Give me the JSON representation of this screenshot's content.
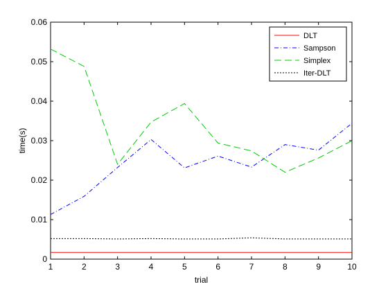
{
  "chart_data": {
    "type": "line",
    "title": "",
    "xlabel": "trial",
    "ylabel": "time(s)",
    "x": [
      1,
      2,
      3,
      4,
      5,
      6,
      7,
      8,
      9,
      10
    ],
    "xlim": [
      1,
      10
    ],
    "ylim": [
      0,
      0.06
    ],
    "xticks": [
      "1",
      "2",
      "3",
      "4",
      "5",
      "6",
      "7",
      "8",
      "9",
      "10"
    ],
    "yticks": [
      "0",
      "0.01",
      "0.02",
      "0.03",
      "0.04",
      "0.05",
      "0.06"
    ],
    "grid": false,
    "legend_position": "top-right",
    "series": [
      {
        "name": "DLT",
        "color": "#ff0000",
        "style": "solid",
        "values": [
          0.0017,
          0.0017,
          0.0017,
          0.0017,
          0.0017,
          0.0017,
          0.0017,
          0.0017,
          0.0017,
          0.0017
        ]
      },
      {
        "name": "Sampson",
        "color": "#0000ff",
        "style": "dashdot",
        "values": [
          0.0113,
          0.0159,
          0.0232,
          0.0303,
          0.0231,
          0.0261,
          0.0233,
          0.029,
          0.0276,
          0.0344
        ]
      },
      {
        "name": "Simplex",
        "color": "#00cc00",
        "style": "dashed",
        "values": [
          0.0532,
          0.0488,
          0.024,
          0.0347,
          0.0394,
          0.0294,
          0.0274,
          0.022,
          0.0256,
          0.03
        ]
      },
      {
        "name": "Iter-DLT",
        "color": "#000000",
        "style": "dotted",
        "values": [
          0.0052,
          0.0052,
          0.0051,
          0.0052,
          0.0051,
          0.0051,
          0.0054,
          0.0051,
          0.0051,
          0.0051
        ]
      }
    ]
  }
}
